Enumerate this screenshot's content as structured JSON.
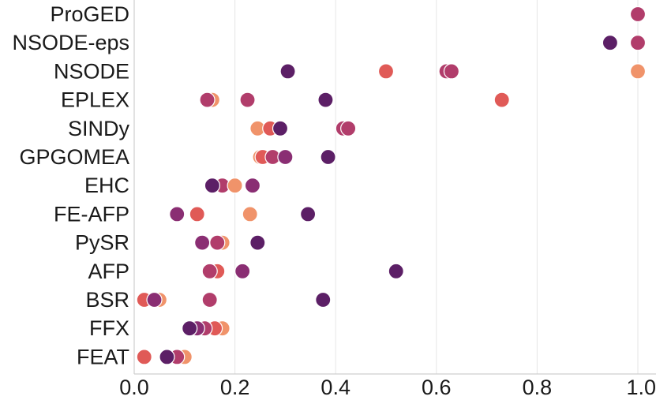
{
  "chart_data": {
    "type": "scatter",
    "title": "",
    "xlabel": "",
    "ylabel": "",
    "xlim": [
      0.0,
      1.0
    ],
    "x_ticks": [
      "0.0",
      "0.2",
      "0.4",
      "0.6",
      "0.8",
      "1.0"
    ],
    "x_tick_values": [
      0.0,
      0.2,
      0.4,
      0.6,
      0.8,
      1.0
    ],
    "grid": "vertical",
    "legend": "none",
    "categories": [
      "ProGED",
      "NSODE-eps",
      "NSODE",
      "EPLEX",
      "SINDy",
      "GPGOMEA",
      "EHC",
      "FE-AFP",
      "PySR",
      "AFP",
      "BSR",
      "FFX",
      "FEAT"
    ],
    "palette": [
      "#f0936a",
      "#e05a57",
      "#b13d6b",
      "#8a2e73",
      "#5c1f66"
    ],
    "rows": [
      {
        "category": "ProGED",
        "points": [
          {
            "x": 1.0,
            "c": 2
          }
        ]
      },
      {
        "category": "NSODE-eps",
        "points": [
          {
            "x": 0.945,
            "c": 4
          },
          {
            "x": 1.0,
            "c": 2
          }
        ]
      },
      {
        "category": "NSODE",
        "points": [
          {
            "x": 0.305,
            "c": 4
          },
          {
            "x": 0.5,
            "c": 1
          },
          {
            "x": 0.62,
            "c": 2
          },
          {
            "x": 0.63,
            "c": 2
          },
          {
            "x": 1.0,
            "c": 0
          }
        ]
      },
      {
        "category": "EPLEX",
        "points": [
          {
            "x": 0.155,
            "c": 0
          },
          {
            "x": 0.145,
            "c": 2
          },
          {
            "x": 0.225,
            "c": 2
          },
          {
            "x": 0.38,
            "c": 4
          },
          {
            "x": 0.73,
            "c": 1
          }
        ]
      },
      {
        "category": "SINDy",
        "points": [
          {
            "x": 0.245,
            "c": 0
          },
          {
            "x": 0.27,
            "c": 1
          },
          {
            "x": 0.29,
            "c": 4
          },
          {
            "x": 0.415,
            "c": 2
          },
          {
            "x": 0.425,
            "c": 2
          }
        ]
      },
      {
        "category": "GPGOMEA",
        "points": [
          {
            "x": 0.25,
            "c": 0
          },
          {
            "x": 0.255,
            "c": 1
          },
          {
            "x": 0.275,
            "c": 2
          },
          {
            "x": 0.3,
            "c": 3
          },
          {
            "x": 0.385,
            "c": 4
          }
        ]
      },
      {
        "category": "EHC",
        "points": [
          {
            "x": 0.175,
            "c": 2
          },
          {
            "x": 0.2,
            "c": 0
          },
          {
            "x": 0.155,
            "c": 4
          },
          {
            "x": 0.235,
            "c": 3
          }
        ]
      },
      {
        "category": "FE-AFP",
        "points": [
          {
            "x": 0.085,
            "c": 3
          },
          {
            "x": 0.125,
            "c": 1
          },
          {
            "x": 0.23,
            "c": 0
          },
          {
            "x": 0.345,
            "c": 4
          }
        ]
      },
      {
        "category": "PySR",
        "points": [
          {
            "x": 0.135,
            "c": 3
          },
          {
            "x": 0.175,
            "c": 0
          },
          {
            "x": 0.165,
            "c": 2
          },
          {
            "x": 0.245,
            "c": 4
          }
        ]
      },
      {
        "category": "AFP",
        "points": [
          {
            "x": 0.165,
            "c": 1
          },
          {
            "x": 0.15,
            "c": 2
          },
          {
            "x": 0.215,
            "c": 3
          },
          {
            "x": 0.52,
            "c": 4
          }
        ]
      },
      {
        "category": "BSR",
        "points": [
          {
            "x": 0.02,
            "c": 1
          },
          {
            "x": 0.05,
            "c": 0
          },
          {
            "x": 0.04,
            "c": 3
          },
          {
            "x": 0.15,
            "c": 2
          },
          {
            "x": 0.375,
            "c": 4
          }
        ]
      },
      {
        "category": "FFX",
        "points": [
          {
            "x": 0.175,
            "c": 0
          },
          {
            "x": 0.16,
            "c": 1
          },
          {
            "x": 0.14,
            "c": 2
          },
          {
            "x": 0.125,
            "c": 3
          },
          {
            "x": 0.11,
            "c": 4
          }
        ]
      },
      {
        "category": "FEAT",
        "points": [
          {
            "x": 0.02,
            "c": 1
          },
          {
            "x": 0.1,
            "c": 0
          },
          {
            "x": 0.085,
            "c": 2
          },
          {
            "x": 0.065,
            "c": 4
          }
        ]
      }
    ]
  }
}
